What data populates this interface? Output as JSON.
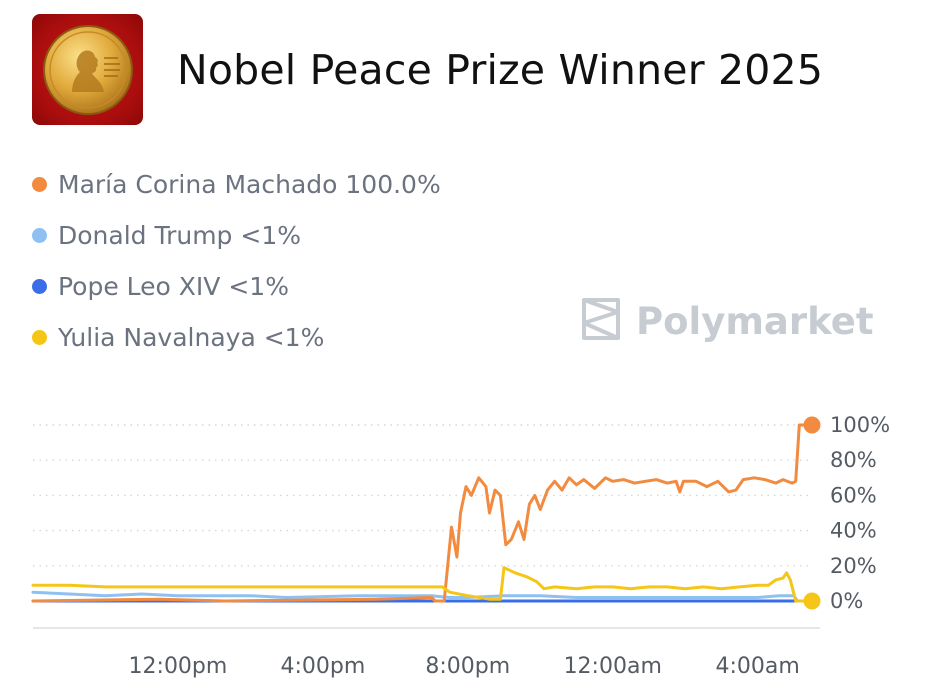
{
  "header": {
    "title": "Nobel Peace Prize Winner 2025",
    "logo_icon": "nobel-medal-icon"
  },
  "watermark": {
    "text": "Polymarket",
    "icon": "polymarket-logo-icon"
  },
  "legend": [
    {
      "name": "María Corina Machado",
      "value": "100.0%",
      "color": "#f28a3f"
    },
    {
      "name": "Donald Trump",
      "value": "<1%",
      "color": "#8ec0f2"
    },
    {
      "name": "Pope Leo XIV",
      "value": "<1%",
      "color": "#3a6ee8"
    },
    {
      "name": "Yulia Navalnaya",
      "value": "<1%",
      "color": "#f5c518"
    }
  ],
  "chart_data": {
    "type": "line",
    "title": "Nobel Peace Prize Winner 2025",
    "xlabel": "",
    "ylabel": "",
    "x_tick_labels": [
      "12:00pm",
      "4:00pm",
      "8:00pm",
      "12:00am",
      "4:00am"
    ],
    "x_tick_hours": [
      12,
      16,
      20,
      24,
      28
    ],
    "y_tick_labels": [
      "100%",
      "80%",
      "60%",
      "40%",
      "20%",
      "0%"
    ],
    "y_tick_values": [
      100,
      80,
      60,
      40,
      20,
      0
    ],
    "xlim_hours": [
      8.0,
      29.5
    ],
    "ylim": [
      0,
      100
    ],
    "grid": true,
    "legend_position": "top-left",
    "series": [
      {
        "name": "María Corina Machado",
        "color": "#f28a3f",
        "end_marker": true,
        "points": [
          [
            8.0,
            0
          ],
          [
            11.5,
            1
          ],
          [
            13.3,
            0
          ],
          [
            17.5,
            1
          ],
          [
            19.0,
            2
          ],
          [
            19.1,
            0
          ],
          [
            19.35,
            0
          ],
          [
            19.55,
            42
          ],
          [
            19.7,
            25
          ],
          [
            19.8,
            50
          ],
          [
            19.95,
            65
          ],
          [
            20.1,
            60
          ],
          [
            20.3,
            70
          ],
          [
            20.5,
            65
          ],
          [
            20.6,
            50
          ],
          [
            20.75,
            63
          ],
          [
            20.9,
            60
          ],
          [
            21.05,
            32
          ],
          [
            21.2,
            35
          ],
          [
            21.4,
            45
          ],
          [
            21.55,
            35
          ],
          [
            21.7,
            55
          ],
          [
            21.85,
            60
          ],
          [
            22.0,
            52
          ],
          [
            22.2,
            63
          ],
          [
            22.4,
            68
          ],
          [
            22.6,
            63
          ],
          [
            22.8,
            70
          ],
          [
            23.0,
            66
          ],
          [
            23.2,
            69
          ],
          [
            23.5,
            64
          ],
          [
            23.8,
            70
          ],
          [
            24.0,
            68
          ],
          [
            24.3,
            69
          ],
          [
            24.6,
            67
          ],
          [
            24.9,
            68
          ],
          [
            25.2,
            69
          ],
          [
            25.5,
            67
          ],
          [
            25.75,
            68
          ],
          [
            25.85,
            62
          ],
          [
            25.95,
            68
          ],
          [
            26.3,
            68
          ],
          [
            26.6,
            65
          ],
          [
            26.9,
            68
          ],
          [
            27.2,
            62
          ],
          [
            27.4,
            63
          ],
          [
            27.6,
            69
          ],
          [
            27.9,
            70
          ],
          [
            28.2,
            69
          ],
          [
            28.5,
            67
          ],
          [
            28.7,
            69
          ],
          [
            28.95,
            67
          ],
          [
            29.05,
            68
          ],
          [
            29.15,
            100
          ],
          [
            29.5,
            100
          ]
        ]
      },
      {
        "name": "Donald Trump",
        "color": "#8ec0f2",
        "points": [
          [
            8.0,
            5
          ],
          [
            9.0,
            4
          ],
          [
            10.0,
            3
          ],
          [
            11.0,
            4
          ],
          [
            12.0,
            3
          ],
          [
            14.0,
            3
          ],
          [
            15.0,
            2
          ],
          [
            17.0,
            3
          ],
          [
            18.0,
            3
          ],
          [
            19.0,
            3
          ],
          [
            19.5,
            2
          ],
          [
            20.0,
            2
          ],
          [
            21.0,
            3
          ],
          [
            22.0,
            3
          ],
          [
            23.0,
            2
          ],
          [
            24.0,
            2
          ],
          [
            25.0,
            2
          ],
          [
            26.0,
            2
          ],
          [
            27.0,
            2
          ],
          [
            28.0,
            2
          ],
          [
            28.6,
            3
          ],
          [
            29.0,
            3
          ],
          [
            29.1,
            0
          ],
          [
            29.5,
            0
          ]
        ]
      },
      {
        "name": "Pope Leo XIV",
        "color": "#3a6ee8",
        "points": [
          [
            8.0,
            0
          ],
          [
            29.5,
            0
          ]
        ]
      },
      {
        "name": "Yulia Navalnaya",
        "color": "#f5c518",
        "end_marker": true,
        "points": [
          [
            8.0,
            9
          ],
          [
            9.0,
            9
          ],
          [
            10.0,
            8
          ],
          [
            11.0,
            8
          ],
          [
            12.0,
            8
          ],
          [
            13.0,
            8
          ],
          [
            15.0,
            8
          ],
          [
            17.0,
            8
          ],
          [
            18.0,
            8
          ],
          [
            19.3,
            8
          ],
          [
            19.5,
            5
          ],
          [
            20.0,
            3
          ],
          [
            20.6,
            1
          ],
          [
            20.9,
            1
          ],
          [
            21.0,
            19
          ],
          [
            21.3,
            16
          ],
          [
            21.6,
            14
          ],
          [
            21.9,
            11
          ],
          [
            22.1,
            7
          ],
          [
            22.4,
            8
          ],
          [
            23.0,
            7
          ],
          [
            23.5,
            8
          ],
          [
            24.0,
            8
          ],
          [
            24.5,
            7
          ],
          [
            25.0,
            8
          ],
          [
            25.5,
            8
          ],
          [
            26.0,
            7
          ],
          [
            26.5,
            8
          ],
          [
            27.0,
            7
          ],
          [
            27.5,
            8
          ],
          [
            28.0,
            9
          ],
          [
            28.3,
            9
          ],
          [
            28.5,
            12
          ],
          [
            28.7,
            13
          ],
          [
            28.8,
            16
          ],
          [
            28.9,
            12
          ],
          [
            29.05,
            0
          ],
          [
            29.5,
            0
          ]
        ]
      }
    ]
  }
}
